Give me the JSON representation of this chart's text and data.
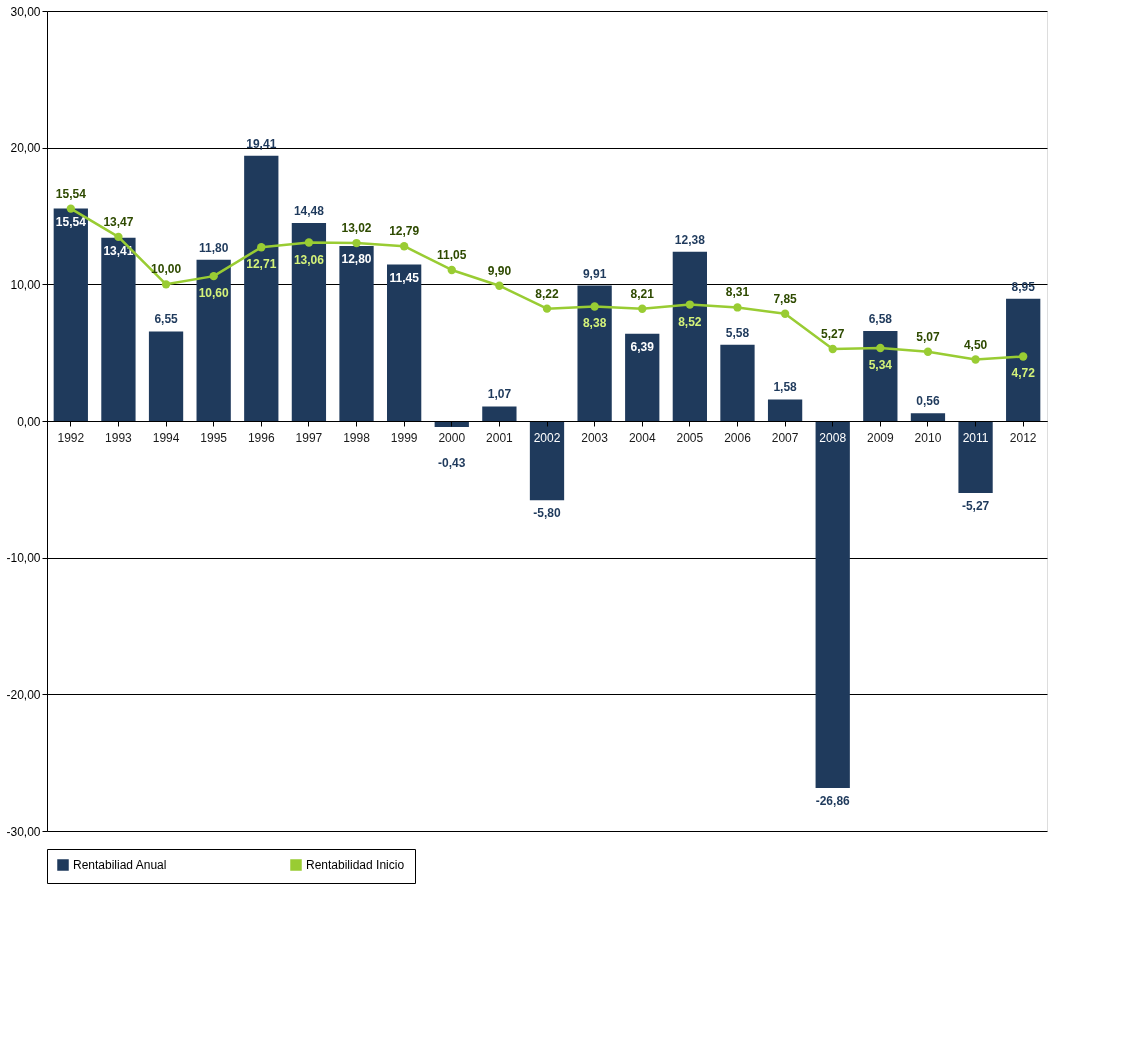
{
  "chart_data": {
    "type": "bar",
    "categories": [
      "1992",
      "1993",
      "1994",
      "1995",
      "1996",
      "1997",
      "1998",
      "1999",
      "2000",
      "2001",
      "2002",
      "2003",
      "2004",
      "2005",
      "2006",
      "2007",
      "2008",
      "2009",
      "2010",
      "2011",
      "2012"
    ],
    "series": [
      {
        "name": "Rentabiliad Anual",
        "type": "bar",
        "color": "#1f3a5c",
        "values": [
          15.54,
          13.41,
          6.55,
          11.8,
          19.41,
          14.48,
          12.8,
          11.45,
          -0.43,
          1.07,
          -5.8,
          9.91,
          6.39,
          12.38,
          5.58,
          1.58,
          -26.86,
          6.58,
          0.56,
          -5.27,
          8.95
        ],
        "value_labels": [
          "15,54",
          "13,41",
          "6,55",
          "11,80",
          "19,41",
          "14,48",
          "12,80",
          "11,45",
          "-0,43",
          "1,07",
          "-5,80",
          "9,91",
          "6,39",
          "12,38",
          "5,58",
          "1,58",
          "-26,86",
          "6,58",
          "0,56",
          "-5,27",
          "8,95"
        ]
      },
      {
        "name": "Rentabilidad Inicio",
        "type": "line",
        "color": "#99cc33",
        "marker": "circle",
        "values": [
          15.54,
          13.47,
          10.0,
          10.6,
          12.71,
          13.06,
          13.02,
          12.79,
          11.05,
          9.9,
          8.22,
          8.38,
          8.21,
          8.52,
          8.31,
          7.85,
          5.27,
          5.34,
          5.07,
          4.5,
          4.72
        ],
        "value_labels": [
          "15,54",
          "13,47",
          "10,00",
          "10,60",
          "12,71",
          "13,06",
          "13,02",
          "12,79",
          "11,05",
          "9,90",
          "8,22",
          "8,38",
          "8,21",
          "8,52",
          "8,31",
          "7,85",
          "5,27",
          "5,34",
          "5,07",
          "4,50",
          "4,72"
        ]
      }
    ],
    "ylim": [
      -30,
      30
    ],
    "yticks": [
      {
        "value": -30,
        "label": "-30,00"
      },
      {
        "value": -20,
        "label": "-20,00"
      },
      {
        "value": -10,
        "label": "-10,00"
      },
      {
        "value": 0,
        "label": "0,00"
      },
      {
        "value": 10,
        "label": "10,00"
      },
      {
        "value": 20,
        "label": "20,00"
      },
      {
        "value": 30,
        "label": "30,00"
      }
    ],
    "grid": "y",
    "legend": "bottom"
  }
}
